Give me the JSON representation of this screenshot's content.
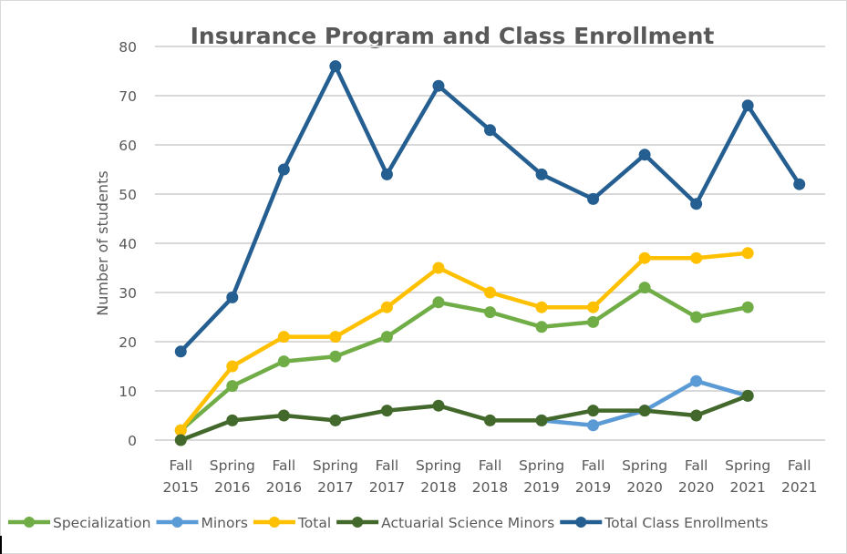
{
  "chart_data": {
    "type": "line",
    "title": "Insurance Program and Class Enrollment",
    "xlabel": "",
    "ylabel": "Number of students",
    "ylim": [
      0,
      80
    ],
    "yticks": [
      0,
      10,
      20,
      30,
      40,
      50,
      60,
      70,
      80
    ],
    "grid": true,
    "legend_position": "bottom",
    "categories": [
      [
        "Fall",
        "2015"
      ],
      [
        "Spring",
        "2016"
      ],
      [
        "Fall",
        "2016"
      ],
      [
        "Spring",
        "2017"
      ],
      [
        "Fall",
        "2017"
      ],
      [
        "Spring",
        "2018"
      ],
      [
        "Fall",
        "2018"
      ],
      [
        "Spring",
        "2019"
      ],
      [
        "Fall",
        "2019"
      ],
      [
        "Spring",
        "2020"
      ],
      [
        "Fall",
        "2020"
      ],
      [
        "Spring",
        "2021"
      ],
      [
        "Fall",
        "2021"
      ]
    ],
    "series": [
      {
        "name": "Specialization",
        "color": "#70AD47",
        "values": [
          2,
          11,
          16,
          17,
          21,
          28,
          26,
          23,
          24,
          31,
          25,
          27,
          null
        ]
      },
      {
        "name": "Minors",
        "color": "#5B9BD5",
        "values": [
          null,
          null,
          null,
          null,
          null,
          null,
          null,
          4,
          3,
          6,
          12,
          9,
          null
        ]
      },
      {
        "name": "Total",
        "color": "#FFC000",
        "values": [
          2,
          15,
          21,
          21,
          27,
          35,
          30,
          27,
          27,
          37,
          37,
          38,
          null
        ]
      },
      {
        "name": "Actuarial Science Minors",
        "color": "#43682B",
        "values": [
          0,
          4,
          5,
          4,
          6,
          7,
          4,
          4,
          6,
          6,
          5,
          9,
          null
        ]
      },
      {
        "name": "Total  Class Enrollments",
        "color": "#255E91",
        "values": [
          18,
          29,
          55,
          76,
          54,
          72,
          63,
          54,
          49,
          58,
          48,
          68,
          52
        ]
      }
    ]
  }
}
